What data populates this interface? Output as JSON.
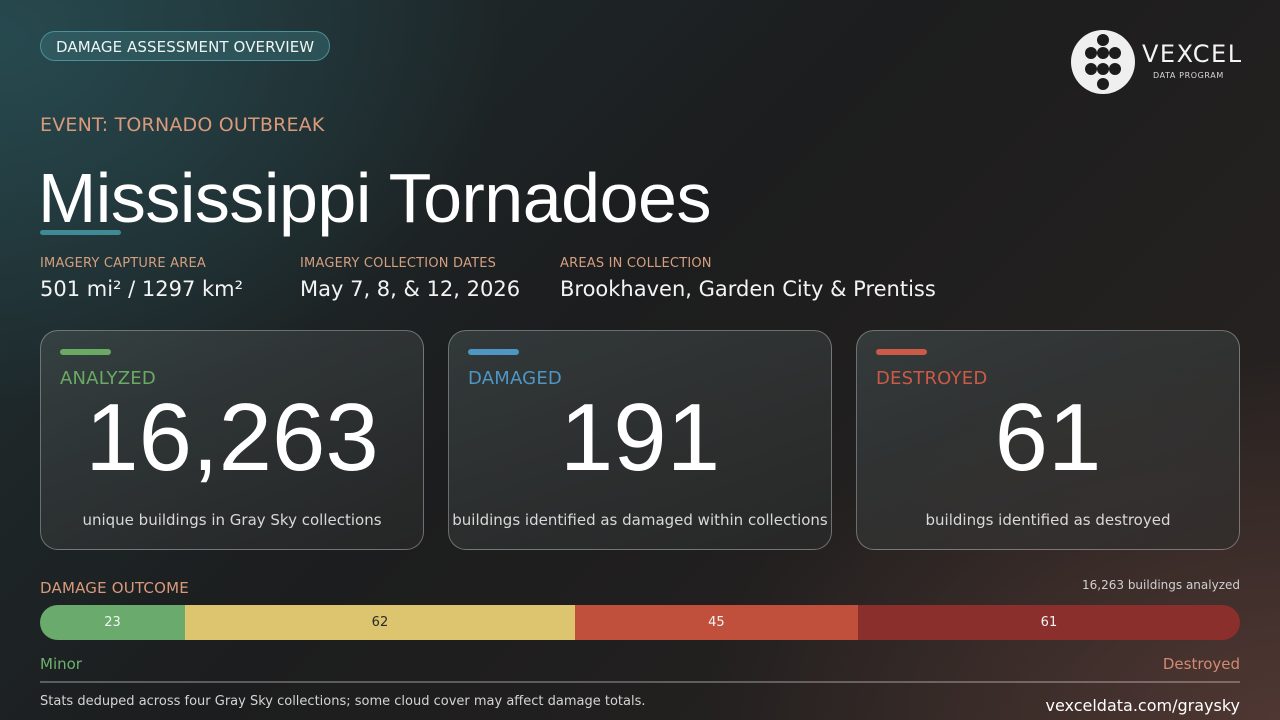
{
  "badge": "DAMAGE ASSESSMENT OVERVIEW",
  "logo": {
    "word": "VEXCEL",
    "subtitle": "DATA PROGRAM",
    "icon": "dot-grid-logo-icon"
  },
  "event": "EVENT: TORNADO OUTBREAK",
  "title": "Mississippi Tornadoes",
  "meta": [
    {
      "label": "IMAGERY CAPTURE AREA",
      "value": "501 mi²  /  1297 km²"
    },
    {
      "label": "IMAGERY COLLECTION DATES",
      "value": "May 7, 8, & 12, 2026"
    },
    {
      "label": "AREAS IN COLLECTION",
      "value": "Brookhaven, Garden City & Prentiss"
    }
  ],
  "cards": [
    {
      "label": "ANALYZED",
      "value": "16,263",
      "desc": "unique buildings in Gray Sky collections",
      "color": "#6aaa64"
    },
    {
      "label": "DAMAGED",
      "value": "191",
      "desc": "buildings identified as damaged within collections",
      "color": "#4e96c4"
    },
    {
      "label": "DESTROYED",
      "value": "61",
      "desc": "buildings identified as destroyed",
      "color": "#cc5a48"
    }
  ],
  "outcome": {
    "label": "DAMAGE OUTCOME",
    "total": "16,263 buildings analyzed",
    "segments": [
      {
        "value": "23",
        "fraction": 0.1208,
        "color": "#6aaa6c",
        "text_color": "#f4f4f4"
      },
      {
        "value": "62",
        "fraction": 0.325,
        "color": "#dcc56e",
        "text_color": "#2a2a2a"
      },
      {
        "value": "45",
        "fraction": 0.2358,
        "color": "#c0503c",
        "text_color": "#f4f4f4"
      },
      {
        "value": "61",
        "fraction": 0.3184,
        "color": "#8b2f2c",
        "text_color": "#f4f4f4"
      }
    ],
    "scale_left": "Minor",
    "scale_right": "Destroyed"
  },
  "footer": {
    "note": "Stats deduped across four Gray Sky collections; some cloud cover may affect damage totals.",
    "url": "vexceldata.com/graysky"
  }
}
